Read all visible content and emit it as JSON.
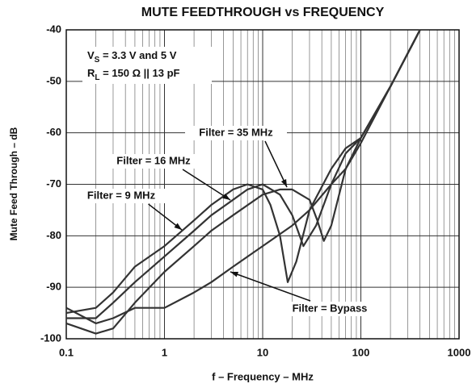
{
  "chart_data": {
    "type": "line",
    "title": "MUTE FEEDTHROUGH vs FREQUENCY",
    "x_label": "f – Frequency – MHz",
    "y_label": "Mute Feed Through – dB",
    "conditions": [
      {
        "main": "V",
        "sub": "S",
        "rest": " = 3.3 V and 5 V"
      },
      {
        "main": "R",
        "sub": "L",
        "rest": " = 150 Ω || 13 pF"
      }
    ],
    "xscale": "log",
    "grid": true,
    "xlim": [
      0.1,
      1000
    ],
    "xticks": [
      0.1,
      1,
      10,
      100,
      1000
    ],
    "ylim": [
      -100,
      -40
    ],
    "yticks": [
      -100,
      -90,
      -80,
      -70,
      -60,
      -50,
      -40
    ],
    "series": [
      {
        "name": "Filter = 9 MHz",
        "color": "#333333",
        "x": [
          0.1,
          0.2,
          0.3,
          0.5,
          1,
          2,
          3,
          5,
          7,
          10,
          12,
          15,
          18,
          22,
          30,
          50,
          70,
          100,
          200,
          400
        ],
        "values": [
          -95,
          -94,
          -91,
          -86,
          -82,
          -77,
          -74,
          -71,
          -70,
          -71,
          -74,
          -80,
          -89,
          -85,
          -75,
          -67,
          -63,
          -61,
          -51,
          -40
        ]
      },
      {
        "name": "Filter = 16 MHz",
        "color": "#333333",
        "x": [
          0.1,
          0.2,
          0.3,
          0.5,
          1,
          2,
          3,
          5,
          7,
          10,
          15,
          20,
          26,
          35,
          50,
          70,
          100,
          200,
          400
        ],
        "values": [
          -96,
          -96,
          -93,
          -89,
          -84,
          -79,
          -76,
          -73,
          -71,
          -70,
          -72,
          -76,
          -82,
          -78,
          -70,
          -64,
          -61,
          -51,
          -40
        ]
      },
      {
        "name": "Filter = 35 MHz",
        "color": "#333333",
        "x": [
          0.1,
          0.2,
          0.3,
          0.5,
          1,
          2,
          3,
          5,
          10,
          15,
          20,
          30,
          36,
          42,
          50,
          70,
          100,
          200,
          400
        ],
        "values": [
          -97,
          -99,
          -98,
          -93,
          -87,
          -82,
          -79,
          -76,
          -72,
          -71,
          -71,
          -73,
          -77,
          -81,
          -78,
          -67,
          -62,
          -51,
          -40
        ]
      },
      {
        "name": "Filter = Bypass",
        "color": "#333333",
        "x": [
          0.1,
          0.2,
          0.3,
          0.5,
          1,
          2,
          3,
          5,
          10,
          20,
          30,
          50,
          70,
          100,
          200,
          400
        ],
        "values": [
          -94,
          -97,
          -96,
          -94,
          -94,
          -91,
          -89,
          -86,
          -82,
          -78,
          -75,
          -70,
          -67,
          -61,
          -51,
          -40
        ]
      }
    ]
  }
}
